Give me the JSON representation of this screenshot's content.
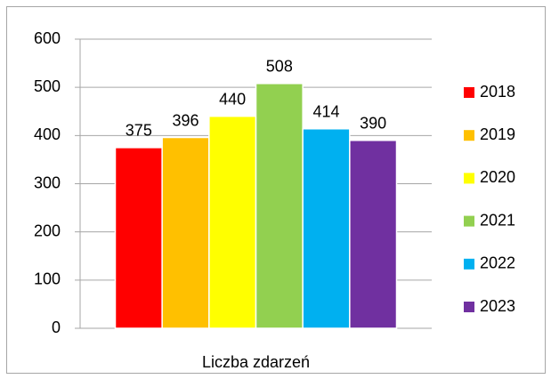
{
  "chart_data": {
    "type": "bar",
    "categories": [
      "Liczba zdarzeń"
    ],
    "series": [
      {
        "name": "2018",
        "color": "#ff0000",
        "values": [
          375
        ]
      },
      {
        "name": "2019",
        "color": "#ffc000",
        "values": [
          396
        ]
      },
      {
        "name": "2020",
        "color": "#ffff00",
        "values": [
          440
        ]
      },
      {
        "name": "2021",
        "color": "#92d050",
        "values": [
          508
        ]
      },
      {
        "name": "2022",
        "color": "#00b0f0",
        "values": [
          414
        ]
      },
      {
        "name": "2023",
        "color": "#7030a0",
        "values": [
          390
        ]
      }
    ],
    "ylim": [
      0,
      600
    ],
    "yticks": [
      0,
      100,
      200,
      300,
      400,
      500,
      600
    ],
    "grid": true,
    "legend": "right"
  }
}
